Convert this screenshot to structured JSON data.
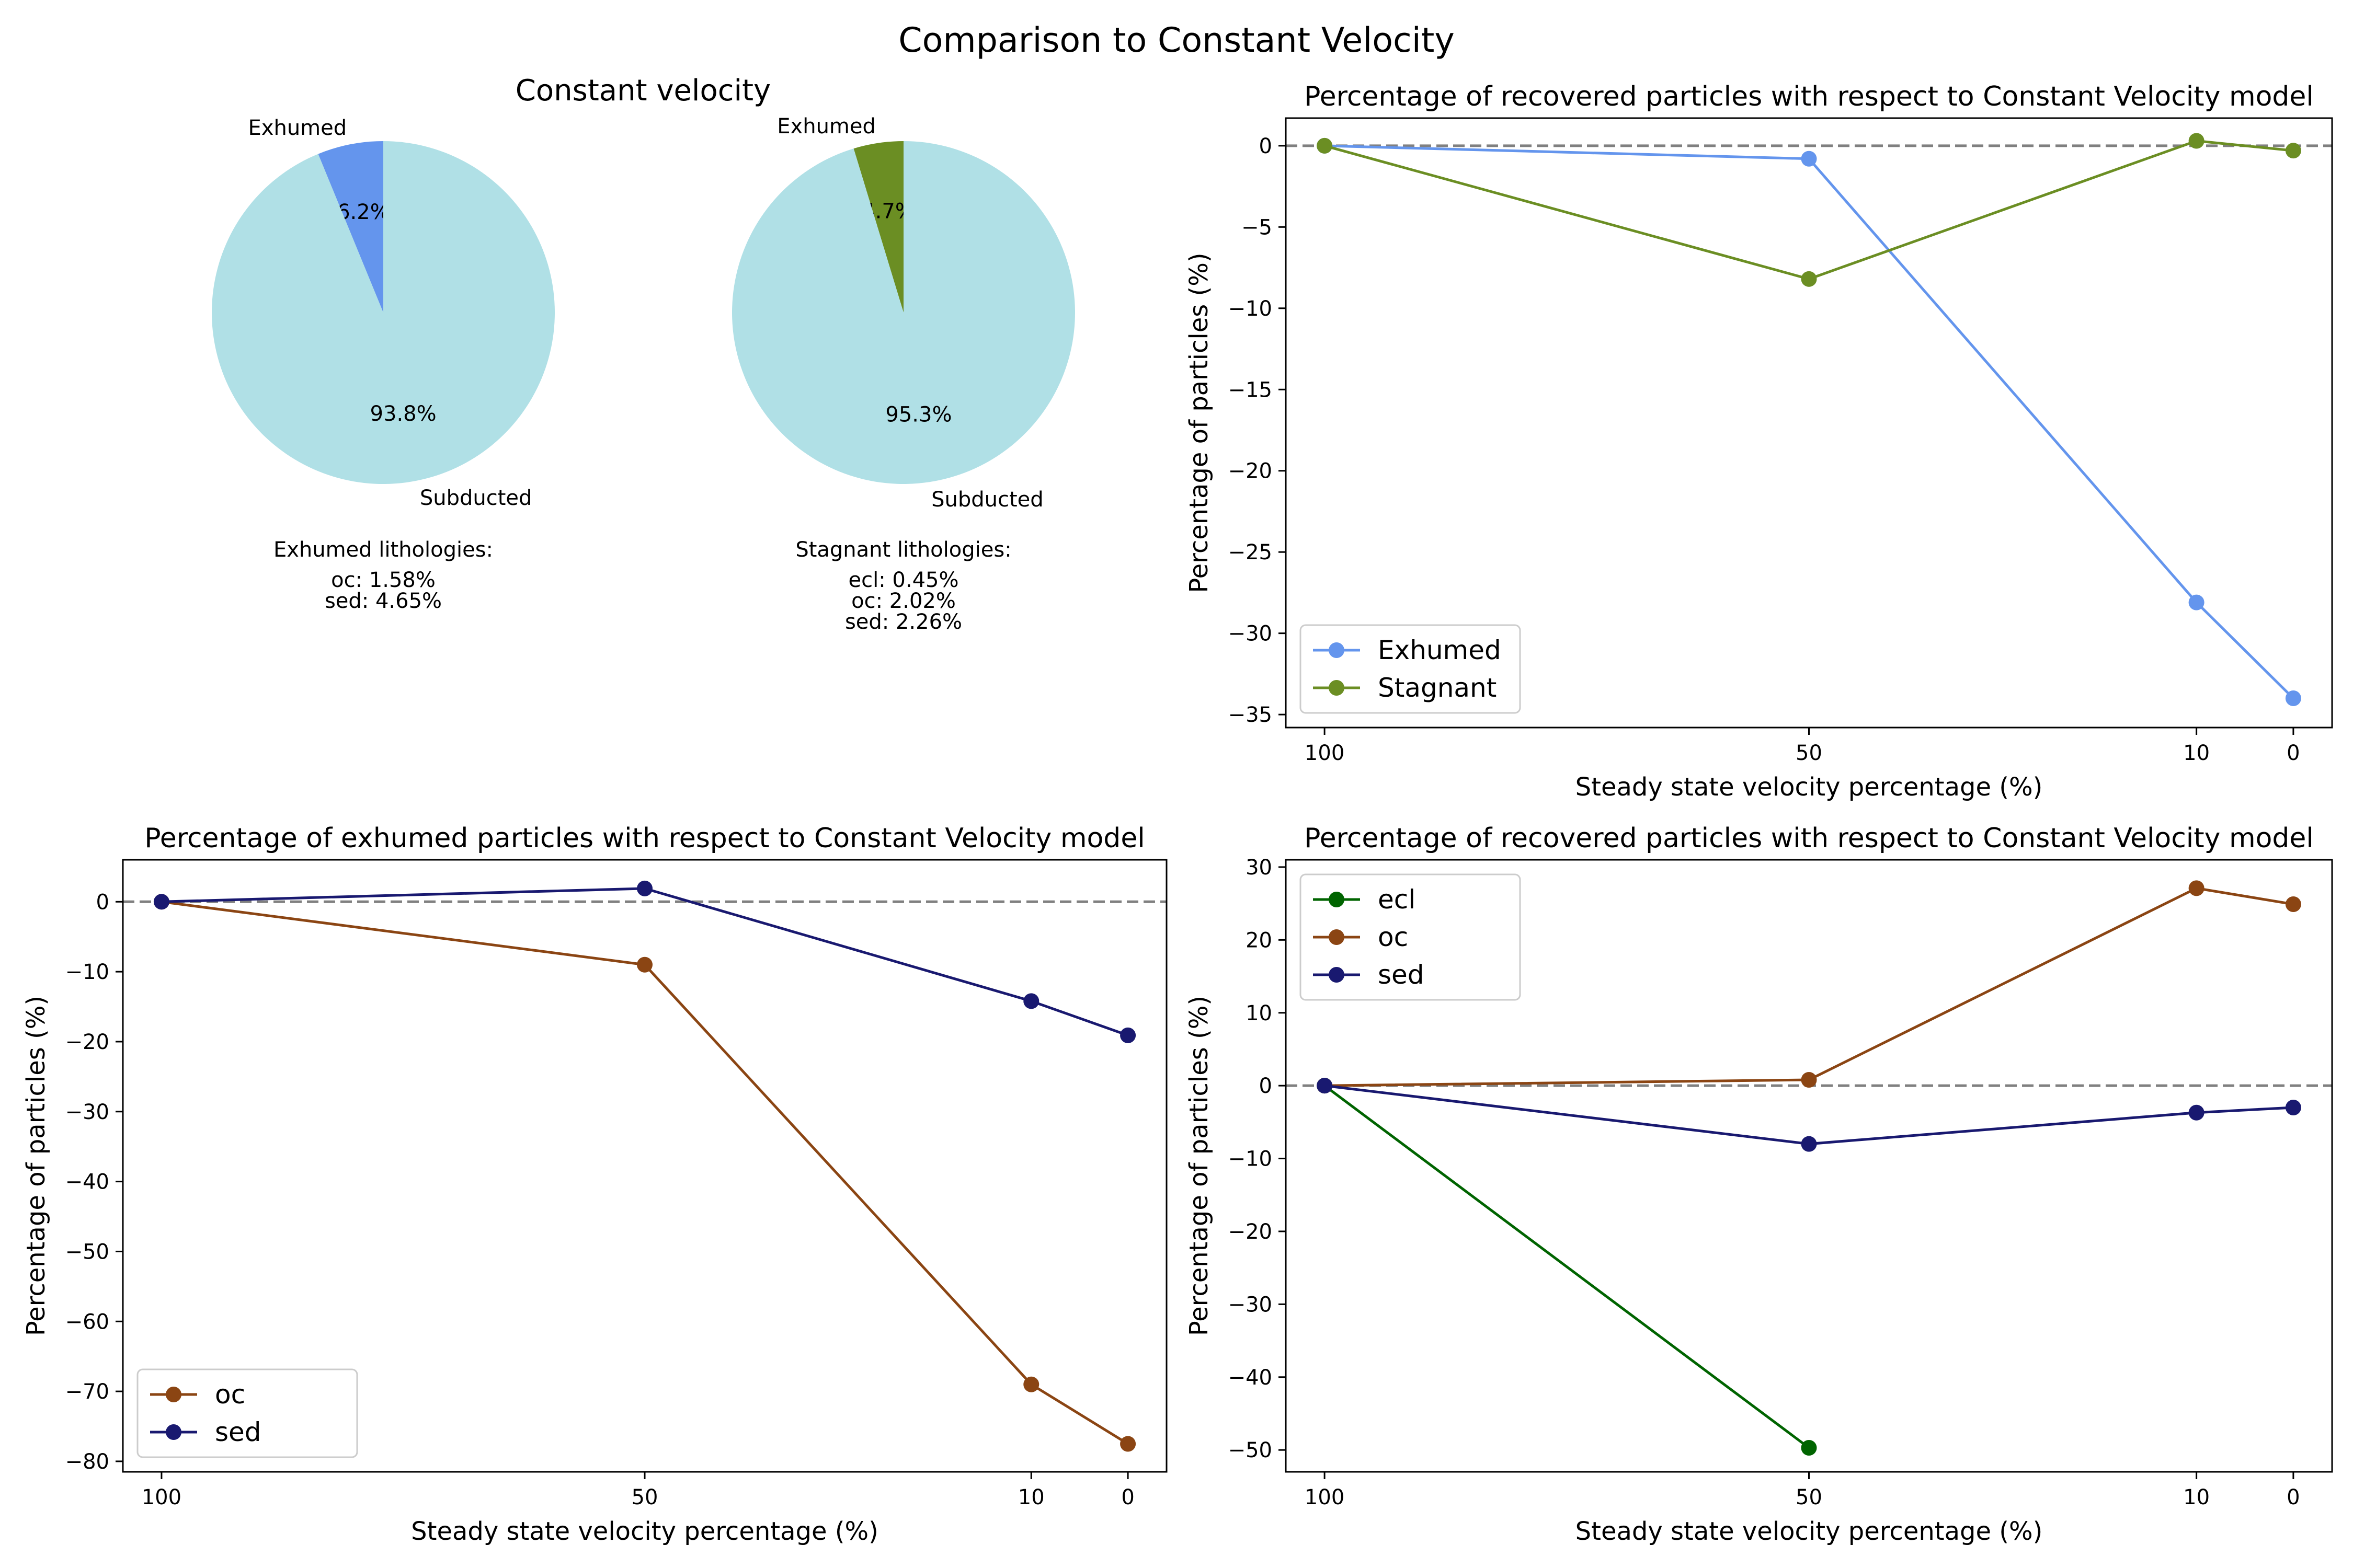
{
  "figure": {
    "suptitle": "Comparison to Constant Velocity"
  },
  "pies": {
    "panel_title": "Constant velocity",
    "items": [
      {
        "slices": [
          {
            "label": "Exhumed",
            "pct": 6.2,
            "pct_text": "6.2%",
            "color": "#6495ED"
          },
          {
            "label": "Subducted",
            "pct": 93.8,
            "pct_text": "93.8%",
            "color": "#B0E0E6"
          }
        ],
        "info_title": "Exhumed lithologies:",
        "info_lines": [
          "oc: 1.58%",
          "sed: 4.65%"
        ]
      },
      {
        "slices": [
          {
            "label": "Exhumed",
            "pct": 4.7,
            "pct_text": "4.7%",
            "color": "#6B8E23"
          },
          {
            "label": "Subducted",
            "pct": 95.3,
            "pct_text": "95.3%",
            "color": "#B0E0E6"
          }
        ],
        "info_title": "Stagnant lithologies:",
        "info_lines": [
          "ecl: 0.45%",
          "oc: 2.02%",
          "sed: 2.26%"
        ]
      }
    ]
  },
  "chart_data": [
    {
      "type": "pie",
      "title": "Constant velocity",
      "labels": [
        "Exhumed",
        "Subducted"
      ],
      "values": [
        6.2,
        93.8
      ],
      "colors": [
        "#6495ED",
        "#B0E0E6"
      ]
    },
    {
      "type": "pie",
      "title": "",
      "labels": [
        "Exhumed",
        "Subducted"
      ],
      "values": [
        4.7,
        95.3
      ],
      "colors": [
        "#6B8E23",
        "#B0E0E6"
      ]
    },
    {
      "type": "line",
      "title": "Percentage of recovered particles with respect to Constant Velocity model",
      "xlabel": "Steady state velocity percentage (%)",
      "ylabel": "Percentage of particles (%)",
      "x_inverted": true,
      "xticks": [
        100,
        50,
        10,
        0
      ],
      "yticks": [
        0,
        -5,
        -10,
        -15,
        -20,
        -25,
        -30,
        -35
      ],
      "xlim": [
        104,
        -4
      ],
      "ylim": [
        -35.8,
        1.7
      ],
      "reference_line": 0,
      "legend_position": "lower left",
      "series": [
        {
          "name": "Exhumed",
          "color": "#6495ED",
          "x": [
            100,
            50,
            10,
            0
          ],
          "y": [
            0,
            -0.8,
            -28.1,
            -34.0
          ]
        },
        {
          "name": "Stagnant",
          "color": "#6B8E23",
          "x": [
            100,
            50,
            10,
            0
          ],
          "y": [
            0,
            -8.2,
            0.3,
            -0.3
          ]
        }
      ]
    },
    {
      "type": "line",
      "title": "Percentage of exhumed particles with respect to Constant Velocity model",
      "xlabel": "Steady state velocity percentage (%)",
      "ylabel": "Percentage of particles (%)",
      "x_inverted": true,
      "xticks": [
        100,
        50,
        10,
        0
      ],
      "yticks": [
        0,
        -10,
        -20,
        -30,
        -40,
        -50,
        -60,
        -70,
        -80
      ],
      "xlim": [
        104,
        -4
      ],
      "ylim": [
        -81.5,
        6
      ],
      "reference_line": 0,
      "legend_position": "lower left",
      "series": [
        {
          "name": "oc",
          "color": "#8B4513",
          "x": [
            100,
            50,
            10,
            0
          ],
          "y": [
            0,
            -9.0,
            -69.0,
            -77.5
          ]
        },
        {
          "name": "sed",
          "color": "#191970",
          "x": [
            100,
            50,
            10,
            0
          ],
          "y": [
            0,
            1.9,
            -14.2,
            -19.1
          ]
        }
      ]
    },
    {
      "type": "line",
      "title": "Percentage of recovered particles with respect to Constant Velocity model",
      "xlabel": "Steady state velocity percentage (%)",
      "ylabel": "Percentage of particles (%)",
      "x_inverted": true,
      "xticks": [
        100,
        50,
        10,
        0
      ],
      "yticks": [
        30,
        20,
        10,
        0,
        -10,
        -20,
        -30,
        -40,
        -50
      ],
      "xlim": [
        104,
        -4
      ],
      "ylim": [
        -53,
        31
      ],
      "reference_line": 0,
      "legend_position": "upper left",
      "series": [
        {
          "name": "ecl",
          "color": "#006400",
          "x": [
            100,
            50
          ],
          "y": [
            0,
            -49.7
          ]
        },
        {
          "name": "oc",
          "color": "#8B4513",
          "x": [
            100,
            50,
            10,
            0
          ],
          "y": [
            0,
            0.8,
            27.1,
            24.9
          ]
        },
        {
          "name": "sed",
          "color": "#191970",
          "x": [
            100,
            50,
            10,
            0
          ],
          "y": [
            0,
            -8.0,
            -3.7,
            -3.0
          ]
        }
      ]
    }
  ]
}
